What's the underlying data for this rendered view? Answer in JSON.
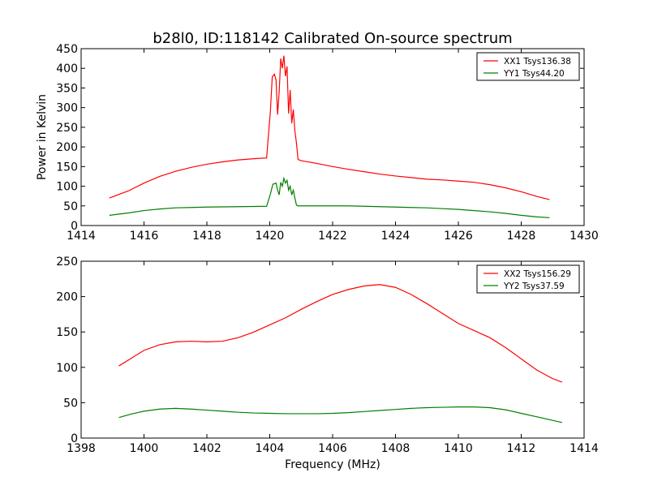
{
  "title": "b28l0, ID:118142 Calibrated On-source spectrum",
  "chart_data": [
    {
      "type": "line",
      "ylabel": "Power in Kelvin",
      "xlabel": "",
      "xlim": [
        1414,
        1430
      ],
      "ylim": [
        0,
        450
      ],
      "xticks": [
        1414,
        1416,
        1418,
        1420,
        1422,
        1424,
        1426,
        1428,
        1430
      ],
      "yticks": [
        0,
        50,
        100,
        150,
        200,
        250,
        300,
        350,
        400,
        450
      ],
      "legend_position": "top-right",
      "series": [
        {
          "name": "XX1 Tsys136.38",
          "color": "#ff0000",
          "x": [
            1414.9,
            1415.5,
            1416.0,
            1416.5,
            1417.0,
            1417.5,
            1418.0,
            1418.5,
            1419.0,
            1419.5,
            1419.9,
            1420.02,
            1420.08,
            1420.15,
            1420.2,
            1420.25,
            1420.3,
            1420.35,
            1420.4,
            1420.45,
            1420.5,
            1420.55,
            1420.6,
            1420.65,
            1420.7,
            1420.75,
            1420.8,
            1420.85,
            1420.9,
            1421.0,
            1421.5,
            1422.0,
            1422.5,
            1423.0,
            1423.5,
            1424.0,
            1424.5,
            1425.0,
            1425.5,
            1426.0,
            1426.5,
            1427.0,
            1427.5,
            1428.0,
            1428.5,
            1428.9
          ],
          "y": [
            70,
            88,
            108,
            125,
            138,
            148,
            156,
            162,
            167,
            170,
            172,
            290,
            378,
            385,
            370,
            282,
            340,
            425,
            400,
            432,
            380,
            405,
            285,
            345,
            260,
            295,
            240,
            210,
            168,
            165,
            158,
            150,
            143,
            137,
            131,
            126,
            122,
            118,
            116,
            113,
            110,
            104,
            96,
            86,
            74,
            66
          ]
        },
        {
          "name": "YY1 Tsys44.20",
          "color": "#008000",
          "x": [
            1414.9,
            1415.5,
            1416.0,
            1416.5,
            1417.0,
            1417.5,
            1418.0,
            1418.5,
            1419.0,
            1419.5,
            1419.9,
            1420.02,
            1420.1,
            1420.2,
            1420.25,
            1420.3,
            1420.35,
            1420.4,
            1420.45,
            1420.5,
            1420.55,
            1420.6,
            1420.65,
            1420.7,
            1420.75,
            1420.8,
            1420.85,
            1420.9,
            1421.0,
            1421.5,
            1422.0,
            1422.5,
            1423.0,
            1423.5,
            1424.0,
            1424.5,
            1425.0,
            1425.5,
            1426.0,
            1426.5,
            1427.0,
            1427.5,
            1428.0,
            1428.5,
            1428.9
          ],
          "y": [
            26,
            32,
            38,
            42,
            45,
            46,
            47,
            47.5,
            48,
            48.5,
            49,
            80,
            105,
            108,
            90,
            78,
            110,
            100,
            120,
            108,
            115,
            90,
            100,
            78,
            90,
            70,
            52,
            50,
            50,
            50,
            50,
            50,
            49,
            48,
            47,
            46,
            45,
            43,
            41,
            38,
            35,
            31,
            26,
            22,
            20
          ]
        }
      ]
    },
    {
      "type": "line",
      "ylabel": "",
      "xlabel": "Frequency (MHz)",
      "xlim": [
        1398,
        1414
      ],
      "ylim": [
        0,
        250
      ],
      "xticks": [
        1398,
        1400,
        1402,
        1404,
        1406,
        1408,
        1410,
        1412,
        1414
      ],
      "yticks": [
        0,
        50,
        100,
        150,
        200,
        250
      ],
      "legend_position": "top-right",
      "series": [
        {
          "name": "XX2 Tsys156.29",
          "color": "#ff0000",
          "x": [
            1399.2,
            1399.6,
            1400.0,
            1400.5,
            1401.0,
            1401.5,
            1402.0,
            1402.5,
            1403.0,
            1403.5,
            1404.0,
            1404.5,
            1405.0,
            1405.5,
            1406.0,
            1406.5,
            1407.0,
            1407.5,
            1408.0,
            1408.5,
            1409.0,
            1409.5,
            1410.0,
            1410.5,
            1411.0,
            1411.5,
            1412.0,
            1412.5,
            1413.0,
            1413.3
          ],
          "y": [
            102,
            113,
            124,
            132,
            136,
            137,
            136,
            137,
            142,
            150,
            160,
            170,
            182,
            193,
            203,
            210,
            215,
            217,
            213,
            203,
            190,
            176,
            162,
            152,
            142,
            128,
            112,
            96,
            84,
            79
          ]
        },
        {
          "name": "YY2 Tsys37.59",
          "color": "#008000",
          "x": [
            1399.2,
            1399.6,
            1400.0,
            1400.5,
            1401.0,
            1401.5,
            1402.0,
            1402.5,
            1403.0,
            1403.5,
            1404.0,
            1404.5,
            1405.0,
            1405.5,
            1406.0,
            1406.5,
            1407.0,
            1407.5,
            1408.0,
            1408.5,
            1409.0,
            1409.5,
            1410.0,
            1410.5,
            1411.0,
            1411.5,
            1412.0,
            1412.5,
            1413.0,
            1413.3
          ],
          "y": [
            29,
            34,
            38,
            41,
            42,
            41,
            39.5,
            38,
            36.5,
            35.5,
            35,
            34.5,
            34.5,
            34.5,
            35,
            36,
            37.5,
            39,
            40.5,
            42,
            43,
            43.5,
            44,
            44,
            43,
            40,
            35,
            30,
            25,
            22
          ]
        }
      ]
    }
  ]
}
